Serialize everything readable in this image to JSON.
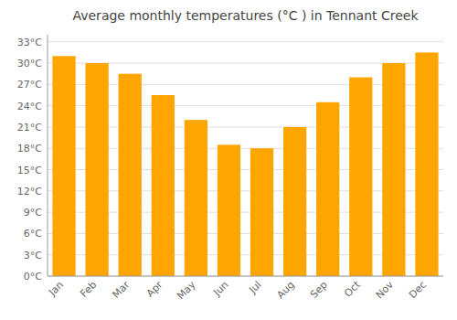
{
  "chart_data": {
    "type": "bar",
    "title": "Average monthly temperatures (°C ) in Tennant Creek",
    "categories": [
      "Jan",
      "Feb",
      "Mar",
      "Apr",
      "May",
      "Jun",
      "Jul",
      "Aug",
      "Sep",
      "Oct",
      "Nov",
      "Dec"
    ],
    "values": [
      31.0,
      30.0,
      28.5,
      25.5,
      22.0,
      18.5,
      18.0,
      21.0,
      24.5,
      28.0,
      30.0,
      31.5
    ],
    "color": "#FFA500",
    "ylim": [
      0,
      34
    ],
    "yticks": [
      {
        "value": 0,
        "label": "0°C"
      },
      {
        "value": 3,
        "label": "3°C"
      },
      {
        "value": 6,
        "label": "6°C"
      },
      {
        "value": 9,
        "label": "9°C"
      },
      {
        "value": 12,
        "label": "12°C"
      },
      {
        "value": 15,
        "label": "15°C"
      },
      {
        "value": 18,
        "label": "18°C"
      },
      {
        "value": 21,
        "label": "21°C"
      },
      {
        "value": 24,
        "label": "24°C"
      },
      {
        "value": 27,
        "label": "27°C"
      },
      {
        "value": 30,
        "label": "30°C"
      },
      {
        "value": 33,
        "label": "33°C"
      }
    ],
    "grid": true
  }
}
